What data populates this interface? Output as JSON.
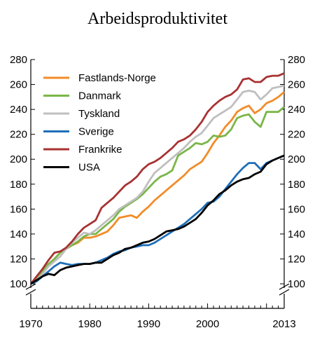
{
  "chart_data": {
    "type": "line",
    "title": "Arbeidsproduktivitet",
    "xlabel": "",
    "ylabel": "",
    "xlim": [
      1970,
      2013
    ],
    "ylim": [
      100,
      280
    ],
    "y_break": true,
    "x_ticks": [
      "1970",
      "1980",
      "1990",
      "2000",
      "2013"
    ],
    "x_tick_values": [
      1970,
      1980,
      1990,
      2000,
      2013
    ],
    "y_ticks": [
      "100",
      "120",
      "140",
      "160",
      "180",
      "200",
      "220",
      "240",
      "260",
      "280"
    ],
    "y_tick_values": [
      100,
      120,
      140,
      160,
      180,
      200,
      220,
      240,
      260,
      280
    ],
    "legend_position": "top-left",
    "grid": false,
    "x": [
      1970,
      1971,
      1972,
      1973,
      1974,
      1975,
      1976,
      1977,
      1978,
      1979,
      1980,
      1981,
      1982,
      1983,
      1984,
      1985,
      1986,
      1987,
      1988,
      1989,
      1990,
      1991,
      1992,
      1993,
      1994,
      1995,
      1996,
      1997,
      1998,
      1999,
      2000,
      2001,
      2002,
      2003,
      2004,
      2005,
      2006,
      2007,
      2008,
      2009,
      2010,
      2011,
      2012,
      2013
    ],
    "series": [
      {
        "name": "Fastlands-Norge",
        "color": "#f28c28",
        "values": [
          100,
          105,
          110,
          115,
          120,
          125,
          129,
          131,
          133,
          137,
          137,
          138,
          140,
          142,
          147,
          153,
          154,
          155,
          153,
          158,
          162,
          167,
          171,
          175,
          179,
          183,
          187,
          192,
          195,
          198,
          205,
          213,
          219,
          226,
          231,
          238,
          241,
          243,
          237,
          240,
          245,
          247,
          250,
          254
        ]
      },
      {
        "name": "Danmark",
        "color": "#7ab648",
        "values": [
          100,
          104,
          110,
          116,
          120,
          125,
          128,
          131,
          134,
          138,
          140,
          140,
          144,
          148,
          152,
          158,
          162,
          165,
          168,
          172,
          177,
          182,
          186,
          188,
          191,
          203,
          206,
          209,
          213,
          212,
          214,
          219,
          218,
          219,
          224,
          233,
          235,
          236,
          230,
          226,
          238,
          238,
          238,
          242
        ]
      },
      {
        "name": "Tyskland",
        "color": "#bfbfbf",
        "values": [
          100,
          103,
          108,
          114,
          118,
          122,
          128,
          133,
          137,
          141,
          140,
          143,
          147,
          151,
          155,
          160,
          163,
          166,
          169,
          174,
          182,
          189,
          193,
          197,
          201,
          205,
          209,
          214,
          218,
          221,
          227,
          233,
          236,
          239,
          242,
          248,
          254,
          255,
          254,
          248,
          252,
          257,
          258,
          259
        ]
      },
      {
        "name": "Sverige",
        "color": "#1f6fb8",
        "values": [
          100,
          102,
          106,
          110,
          114,
          117,
          116,
          115,
          116,
          116,
          116,
          117,
          119,
          121,
          124,
          126,
          127,
          129,
          130,
          131,
          131,
          133,
          136,
          139,
          142,
          145,
          148,
          152,
          156,
          160,
          165,
          166,
          170,
          176,
          182,
          188,
          193,
          197,
          197,
          192,
          197,
          199,
          201,
          203
        ]
      },
      {
        "name": "Frankrike",
        "color": "#a83232",
        "values": [
          100,
          106,
          112,
          119,
          125,
          126,
          129,
          134,
          140,
          145,
          148,
          151,
          161,
          165,
          169,
          174,
          179,
          182,
          186,
          192,
          196,
          198,
          201,
          205,
          209,
          214,
          216,
          219,
          224,
          230,
          238,
          243,
          247,
          250,
          252,
          256,
          264,
          265,
          262,
          262,
          266,
          267,
          267,
          269
        ]
      },
      {
        "name": "USA",
        "color": "#000000",
        "values": [
          100,
          103,
          106,
          108,
          107,
          111,
          113,
          114,
          115,
          116,
          116,
          117,
          117,
          120,
          123,
          125,
          128,
          129,
          131,
          133,
          134,
          136,
          139,
          142,
          143,
          144,
          146,
          149,
          152,
          157,
          163,
          167,
          172,
          175,
          179,
          182,
          184,
          185,
          188,
          190,
          196,
          199,
          201,
          203
        ]
      }
    ]
  }
}
